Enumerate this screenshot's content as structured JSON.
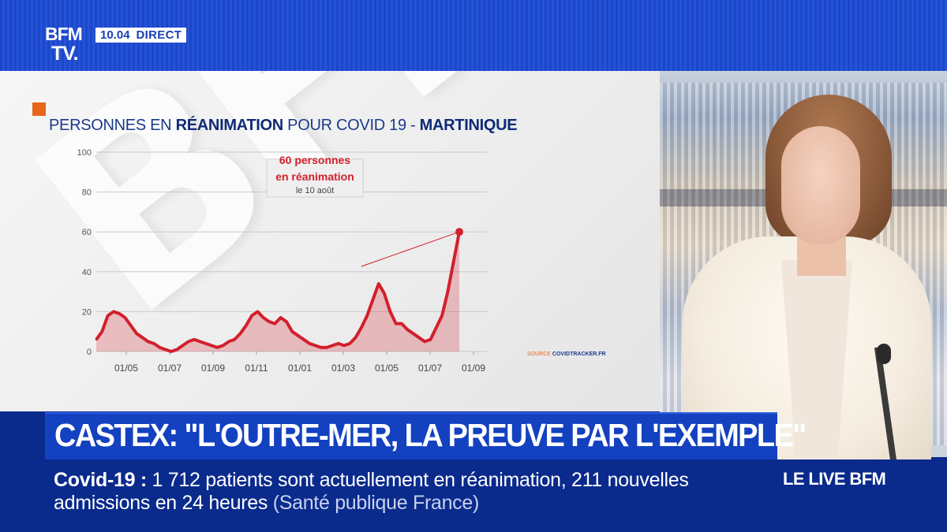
{
  "channel": {
    "logo_line1": "BFM",
    "logo_line2": "TV.",
    "time": "10.04",
    "live_label": "DIRECT"
  },
  "graphic": {
    "title_part1": "PERSONNES EN ",
    "title_bold1": "RÉANIMATION",
    "title_part2": " POUR COVID 19 - ",
    "title_bold2": "MARTINIQUE",
    "watermark": "BFM",
    "annotation_line1": "60 personnes",
    "annotation_line2": "en réanimation",
    "annotation_line3": "le 10 août",
    "source_label": "SOURCE ",
    "source_name": "COVIDTRACKER.FR"
  },
  "chart_data": {
    "type": "area",
    "title": "PERSONNES EN RÉANIMATION POUR COVID 19 - MARTINIQUE",
    "ylim": [
      0,
      100
    ],
    "y_ticks": [
      0,
      20,
      40,
      60,
      80,
      100
    ],
    "x_tick_labels": [
      "01/05",
      "01/07",
      "01/09",
      "01/11",
      "01/01",
      "01/03",
      "01/05",
      "01/07",
      "01/09"
    ],
    "series": [
      {
        "name": "",
        "color": "#d2202c",
        "values": [
          6,
          10,
          18,
          20,
          19,
          17,
          13,
          9,
          7,
          5,
          4,
          2,
          1,
          0,
          1,
          3,
          5,
          6,
          5,
          4,
          3,
          2,
          3,
          5,
          6,
          9,
          13,
          18,
          20,
          17,
          15,
          14,
          17,
          15,
          10,
          8,
          6,
          4,
          3,
          2,
          2,
          3,
          4,
          3,
          4,
          7,
          12,
          18,
          26,
          34,
          29,
          20,
          14,
          14,
          11,
          9,
          7,
          5,
          6,
          12,
          18,
          30,
          45,
          60
        ]
      }
    ],
    "annotation": {
      "value": 60,
      "label": "60 personnes en réanimation le 10 août"
    },
    "grid": true
  },
  "lower_third": {
    "headline": "CASTEX: \"L'OUTRE-MER, LA PREUVE PAR L'EXEMPLE\""
  },
  "ticker": {
    "topic": "Covid-19",
    "separator": " : ",
    "line1_text": "1 712 patients sont actuellement en réanimation, 211 nouvelles",
    "line2_text": "admissions en 24 heures",
    "source": "(Santé publique France)",
    "program": "LE LIVE BFM"
  },
  "colors": {
    "brand_blue": "#1341c0",
    "accent_orange": "#e8661b",
    "series_red": "#d2202c"
  }
}
